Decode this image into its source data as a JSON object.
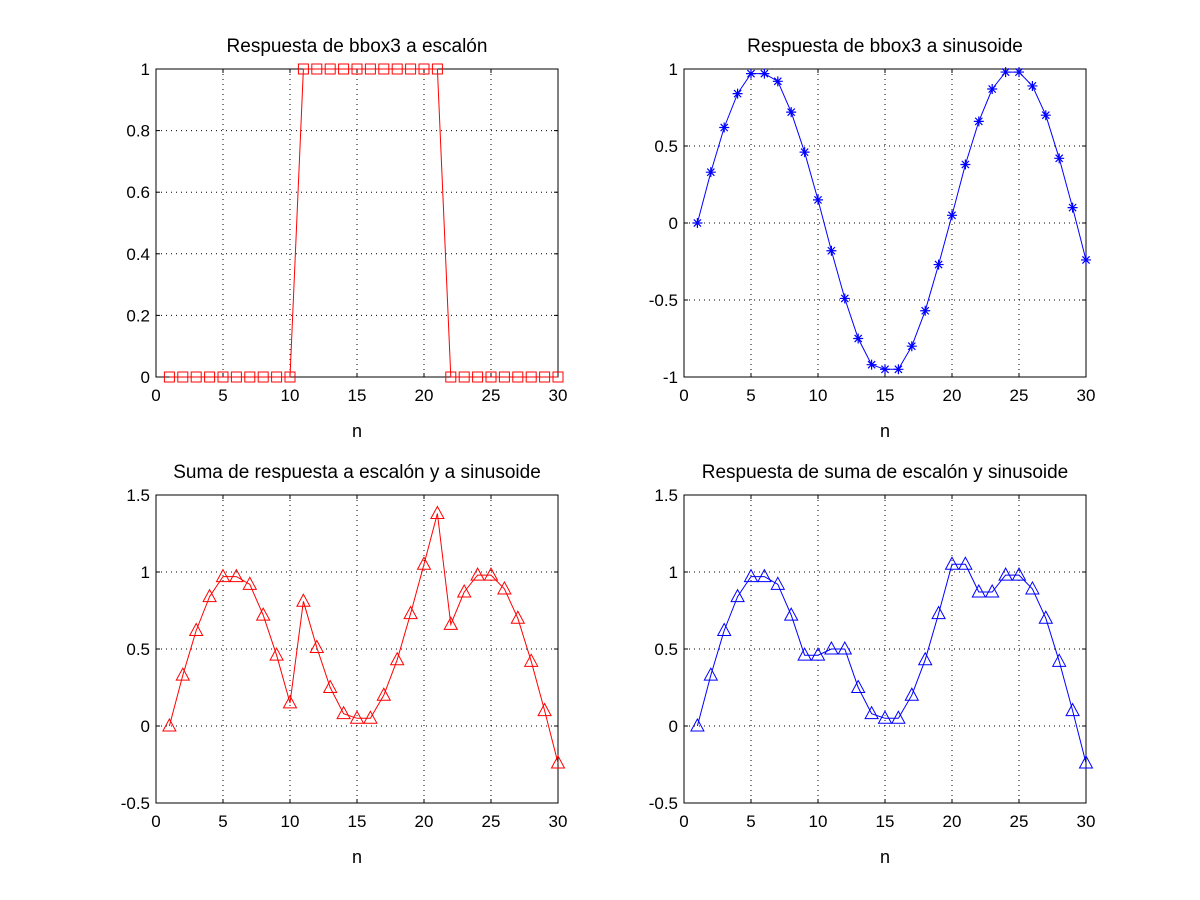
{
  "chart_data": [
    {
      "type": "line",
      "title": "Respuesta de bbox3 a escalón",
      "xlabel": "n",
      "ylabel": "",
      "xlim": [
        0,
        30
      ],
      "ylim": [
        0,
        1
      ],
      "xticks": [
        0,
        5,
        10,
        15,
        20,
        25,
        30
      ],
      "yticks": [
        0,
        0.2,
        0.4,
        0.6,
        0.8,
        1
      ],
      "ytick_labels": [
        "0",
        "0.2",
        "0.4",
        "0.6",
        "0.8",
        "1"
      ],
      "grid": true,
      "series": [
        {
          "color": "#ff0000",
          "marker": "square",
          "x": [
            1,
            2,
            3,
            4,
            5,
            6,
            7,
            8,
            9,
            10,
            11,
            12,
            13,
            14,
            15,
            16,
            17,
            18,
            19,
            20,
            21,
            22,
            23,
            24,
            25,
            26,
            27,
            28,
            29,
            30
          ],
          "values": [
            0,
            0,
            0,
            0,
            0,
            0,
            0,
            0,
            0,
            0,
            1,
            1,
            1,
            1,
            1,
            1,
            1,
            1,
            1,
            1,
            1,
            0,
            0,
            0,
            0,
            0,
            0,
            0,
            0,
            0
          ]
        }
      ]
    },
    {
      "type": "line",
      "title": "Respuesta de bbox3 a sinusoide",
      "xlabel": "n",
      "ylabel": "",
      "xlim": [
        0,
        30
      ],
      "ylim": [
        -1,
        1
      ],
      "xticks": [
        0,
        5,
        10,
        15,
        20,
        25,
        30
      ],
      "yticks": [
        -1,
        -0.5,
        0,
        0.5,
        1
      ],
      "ytick_labels": [
        "-1",
        "-0.5",
        "0",
        "0.5",
        "1"
      ],
      "grid": true,
      "series": [
        {
          "color": "#0000ff",
          "marker": "asterisk",
          "x": [
            1,
            2,
            3,
            4,
            5,
            6,
            7,
            8,
            9,
            10,
            11,
            12,
            13,
            14,
            15,
            16,
            17,
            18,
            19,
            20,
            21,
            22,
            23,
            24,
            25,
            26,
            27,
            28,
            29,
            30
          ],
          "values": [
            0,
            0.33,
            0.62,
            0.84,
            0.97,
            0.97,
            0.92,
            0.72,
            0.46,
            0.15,
            -0.18,
            -0.49,
            -0.75,
            -0.92,
            -0.95,
            -0.95,
            -0.8,
            -0.57,
            -0.27,
            0.05,
            0.38,
            0.66,
            0.87,
            0.98,
            0.98,
            0.89,
            0.7,
            0.42,
            0.1,
            -0.24
          ]
        }
      ]
    },
    {
      "type": "line",
      "title": "Suma de respuesta a escalón y a sinusoide",
      "xlabel": "n",
      "ylabel": "",
      "xlim": [
        0,
        30
      ],
      "ylim": [
        -0.5,
        1.5
      ],
      "xticks": [
        0,
        5,
        10,
        15,
        20,
        25,
        30
      ],
      "yticks": [
        -0.5,
        0,
        0.5,
        1,
        1.5
      ],
      "ytick_labels": [
        "-0.5",
        "0",
        "0.5",
        "1",
        "1.5"
      ],
      "grid": true,
      "series": [
        {
          "color": "#ff0000",
          "marker": "triangle",
          "x": [
            1,
            2,
            3,
            4,
            5,
            6,
            7,
            8,
            9,
            10,
            11,
            12,
            13,
            14,
            15,
            16,
            17,
            18,
            19,
            20,
            21,
            22,
            23,
            24,
            25,
            26,
            27,
            28,
            29,
            30
          ],
          "values": [
            0,
            0.33,
            0.62,
            0.84,
            0.97,
            0.97,
            0.92,
            0.72,
            0.46,
            0.15,
            0.81,
            0.51,
            0.25,
            0.08,
            0.05,
            0.05,
            0.2,
            0.43,
            0.73,
            1.05,
            1.38,
            0.66,
            0.87,
            0.98,
            0.98,
            0.89,
            0.7,
            0.42,
            0.1,
            -0.24
          ]
        }
      ]
    },
    {
      "type": "line",
      "title": "Respuesta de suma de escalón y sinusoide",
      "xlabel": "n",
      "ylabel": "",
      "xlim": [
        0,
        30
      ],
      "ylim": [
        -0.5,
        1.5
      ],
      "xticks": [
        0,
        5,
        10,
        15,
        20,
        25,
        30
      ],
      "yticks": [
        -0.5,
        0,
        0.5,
        1,
        1.5
      ],
      "ytick_labels": [
        "-0.5",
        "0",
        "0.5",
        "1",
        "1.5"
      ],
      "grid": true,
      "series": [
        {
          "color": "#0000ff",
          "marker": "triangle",
          "x": [
            1,
            2,
            3,
            4,
            5,
            6,
            7,
            8,
            9,
            10,
            11,
            12,
            13,
            14,
            15,
            16,
            17,
            18,
            19,
            20,
            21,
            22,
            23,
            24,
            25,
            26,
            27,
            28,
            29,
            30
          ],
          "values": [
            0,
            0.33,
            0.62,
            0.84,
            0.97,
            0.97,
            0.92,
            0.72,
            0.46,
            0.46,
            0.5,
            0.5,
            0.25,
            0.08,
            0.05,
            0.05,
            0.2,
            0.43,
            0.73,
            1.05,
            1.05,
            0.87,
            0.87,
            0.98,
            0.98,
            0.89,
            0.7,
            0.42,
            0.1,
            -0.24
          ]
        }
      ]
    }
  ]
}
